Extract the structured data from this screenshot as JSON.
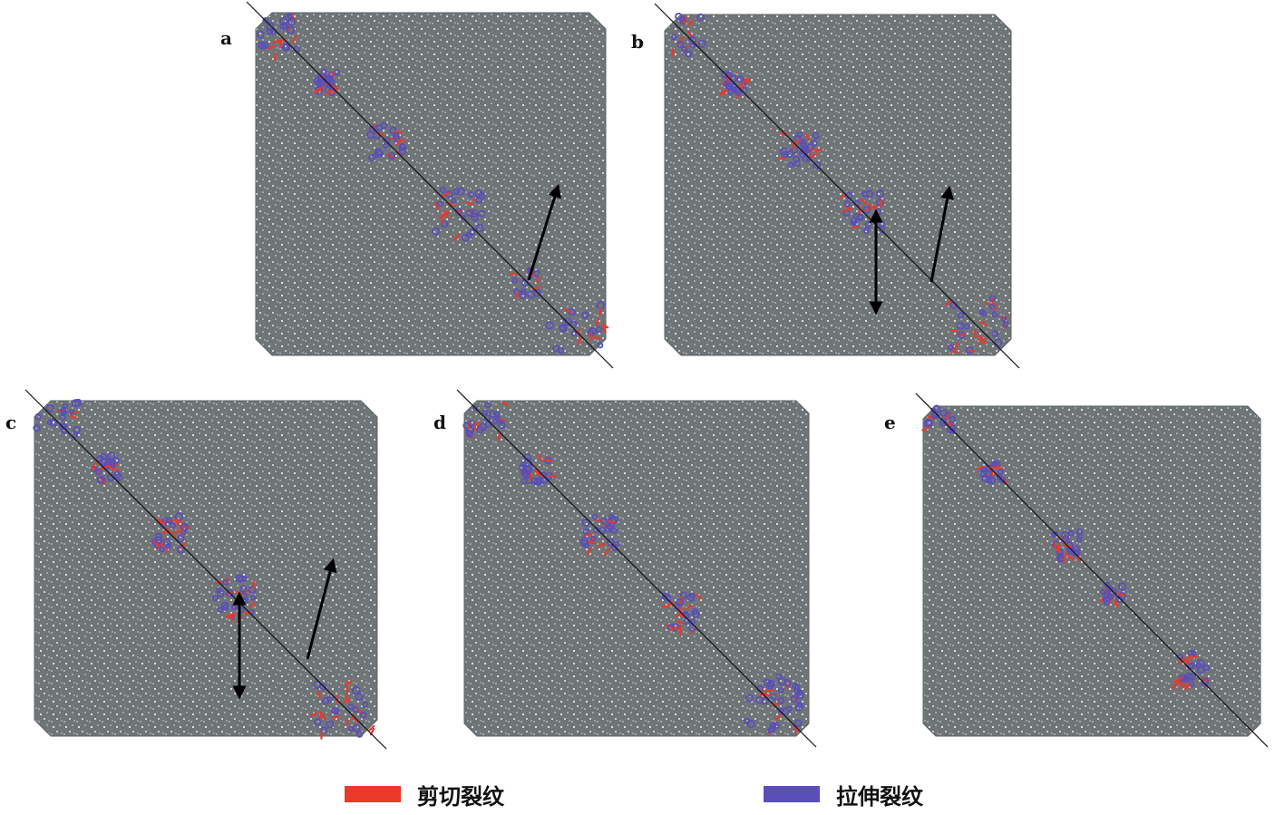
{
  "colors": {
    "matrix": "#6f7477",
    "pore": "#ffffff",
    "shear": "#e8392b",
    "tension": "#5a4fb8",
    "fault_line": "#111111",
    "arrow": "#000000"
  },
  "panels": [
    {
      "label": "a",
      "arrows": [
        "up"
      ]
    },
    {
      "label": "b",
      "arrows": [
        "vertical-double",
        "up"
      ]
    },
    {
      "label": "c",
      "arrows": [
        "vertical-double",
        "up"
      ]
    },
    {
      "label": "d",
      "arrows": []
    },
    {
      "label": "e",
      "arrows": []
    }
  ],
  "legend": [
    {
      "label": "剪切裂纹",
      "color": "#e8392b"
    },
    {
      "label": "拉伸裂纹",
      "color": "#5a4fb8"
    }
  ]
}
